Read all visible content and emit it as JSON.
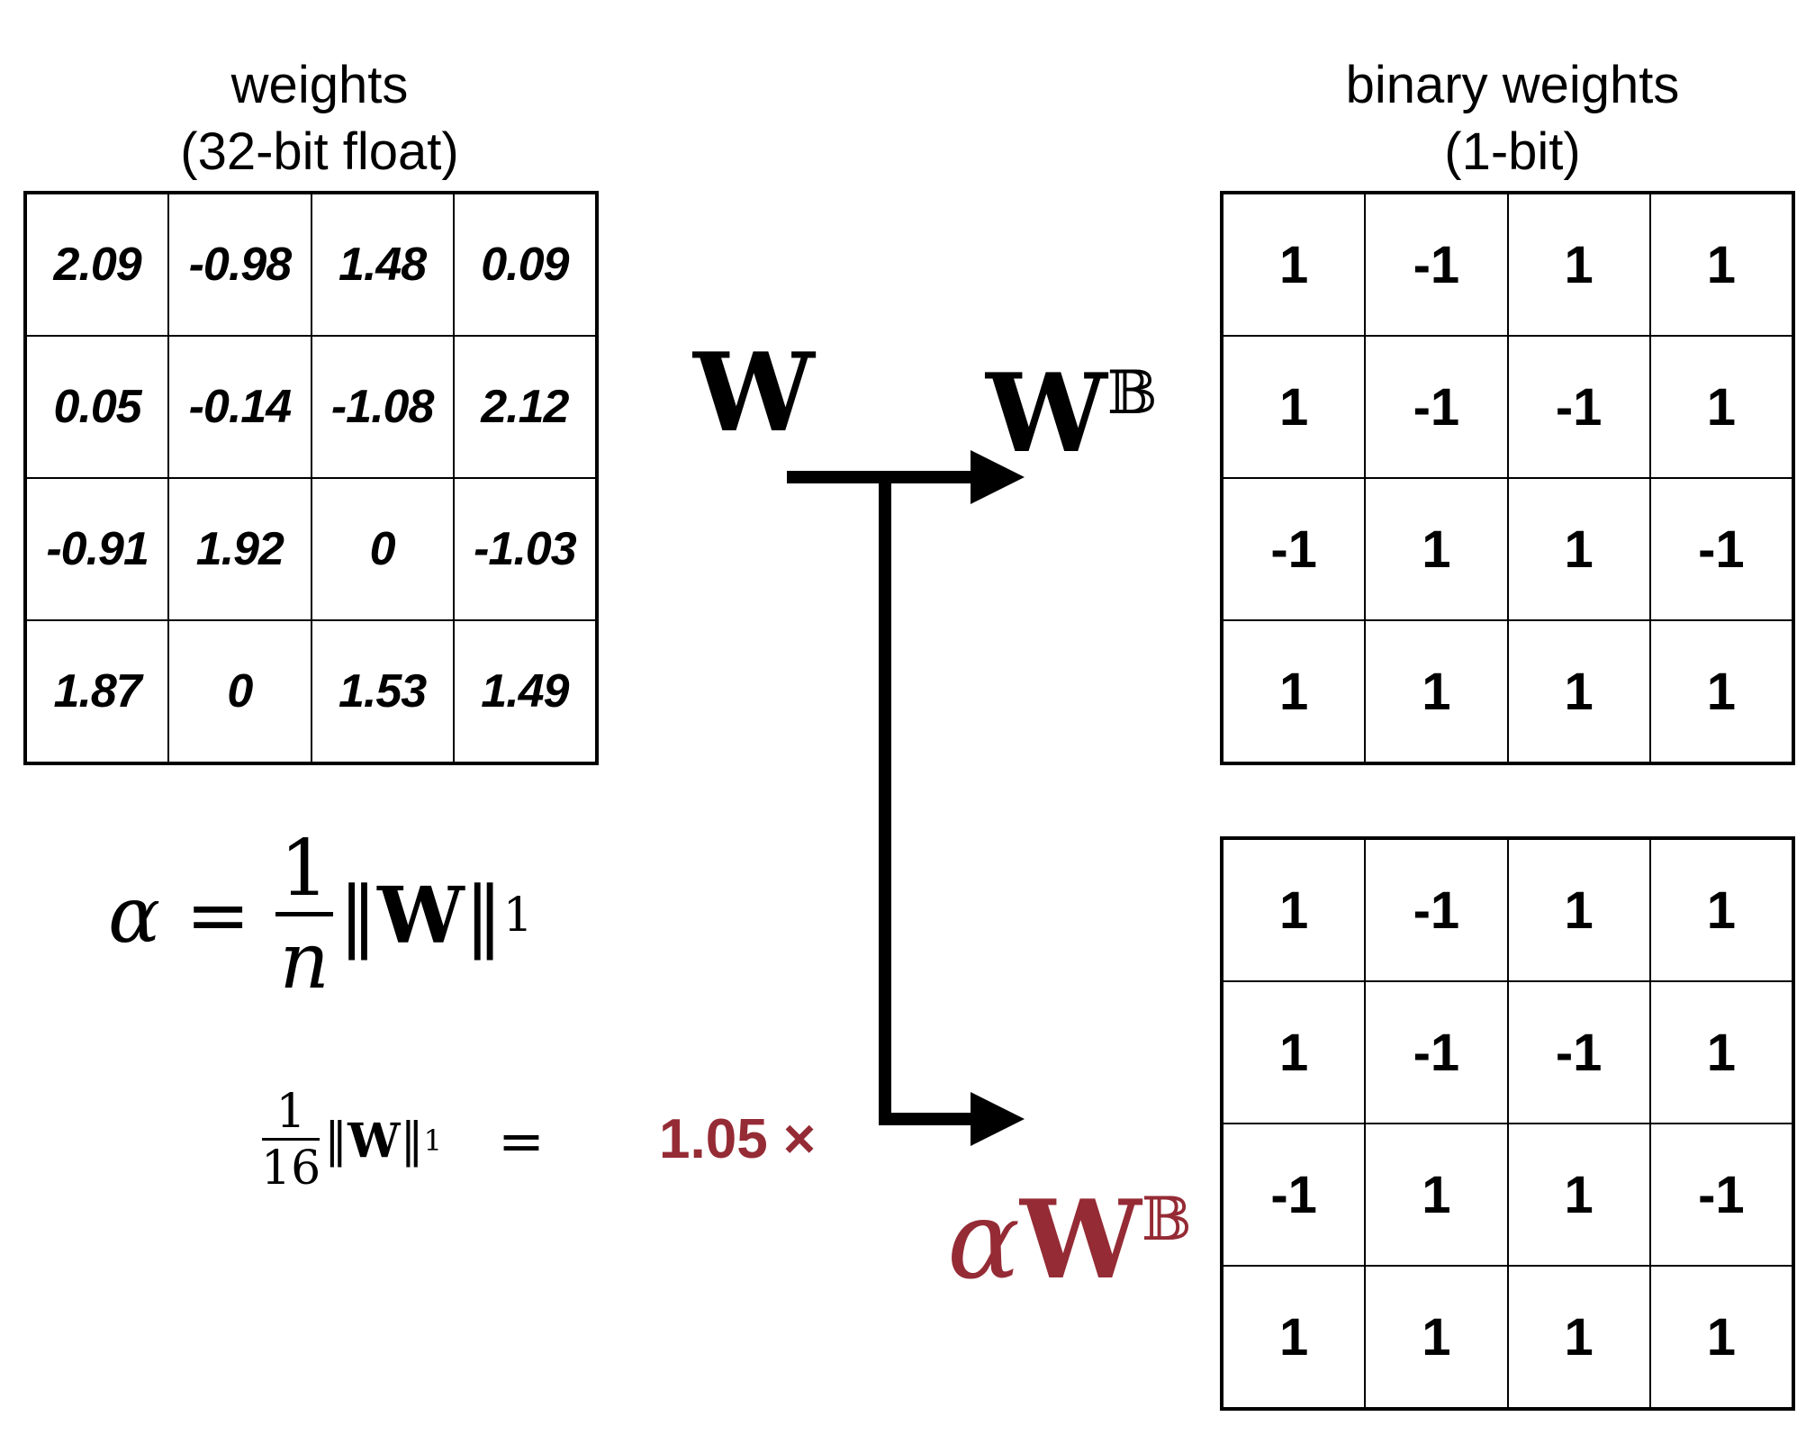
{
  "left_caption": {
    "line1": "weights",
    "line2": "(32-bit float)"
  },
  "right_caption": {
    "line1": "binary weights",
    "line2": "(1-bit)"
  },
  "float_weights": [
    [
      "2.09",
      "-0.98",
      "1.48",
      "0.09"
    ],
    [
      "0.05",
      "-0.14",
      "-1.08",
      "2.12"
    ],
    [
      "-0.91",
      "1.92",
      "0",
      "-1.03"
    ],
    [
      "1.87",
      "0",
      "1.53",
      "1.49"
    ]
  ],
  "binary_weights": [
    [
      "1",
      "-1",
      "1",
      "1"
    ],
    [
      "1",
      "-1",
      "-1",
      "1"
    ],
    [
      "-1",
      "1",
      "1",
      "-1"
    ],
    [
      "1",
      "1",
      "1",
      "1"
    ]
  ],
  "scaled_binary_weights": [
    [
      "1",
      "-1",
      "1",
      "1"
    ],
    [
      "1",
      "-1",
      "-1",
      "1"
    ],
    [
      "-1",
      "1",
      "1",
      "-1"
    ],
    [
      "1",
      "1",
      "1",
      "1"
    ]
  ],
  "labels": {
    "W": "W",
    "WB_base": "W",
    "WB_sup": "𝔹",
    "alpha": "α",
    "alphaWB_base": "W",
    "alphaWB_sup": "𝔹"
  },
  "formula": {
    "alpha": "α",
    "equals": "=",
    "numerator": "1",
    "denominator": "n",
    "norm_open": "‖",
    "W": "W",
    "norm_close": "‖",
    "subscript": "1"
  },
  "computation": {
    "numerator": "1",
    "denominator": "16",
    "norm_open": "‖",
    "W": "W",
    "norm_close": "‖",
    "subscript": "1",
    "equals": "=",
    "result": "1.05 ×"
  },
  "colors": {
    "accent": "#952b35",
    "line": "#000000"
  }
}
